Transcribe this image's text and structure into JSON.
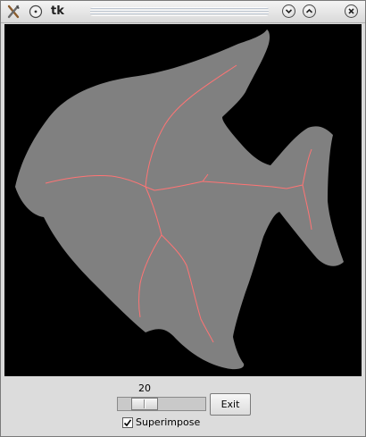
{
  "window": {
    "title": "tk"
  },
  "titlebar": {
    "app_icon": "tools-icon",
    "menu_icon": "circle-menu-icon",
    "minimize_icon": "chevron-down-icon",
    "maximize_icon": "chevron-up-icon",
    "close_icon": "close-icon"
  },
  "canvas": {
    "background": "#000000",
    "shape_color": "#808080",
    "skeleton_color": "#ff7070",
    "content": "angelfish-shape-icon"
  },
  "controls": {
    "scale_value": "20",
    "scale_fraction": 0.2,
    "exit_label": "Exit",
    "superimpose_label": "Superimpose",
    "superimpose_checked": true,
    "check_mark": "✓"
  }
}
